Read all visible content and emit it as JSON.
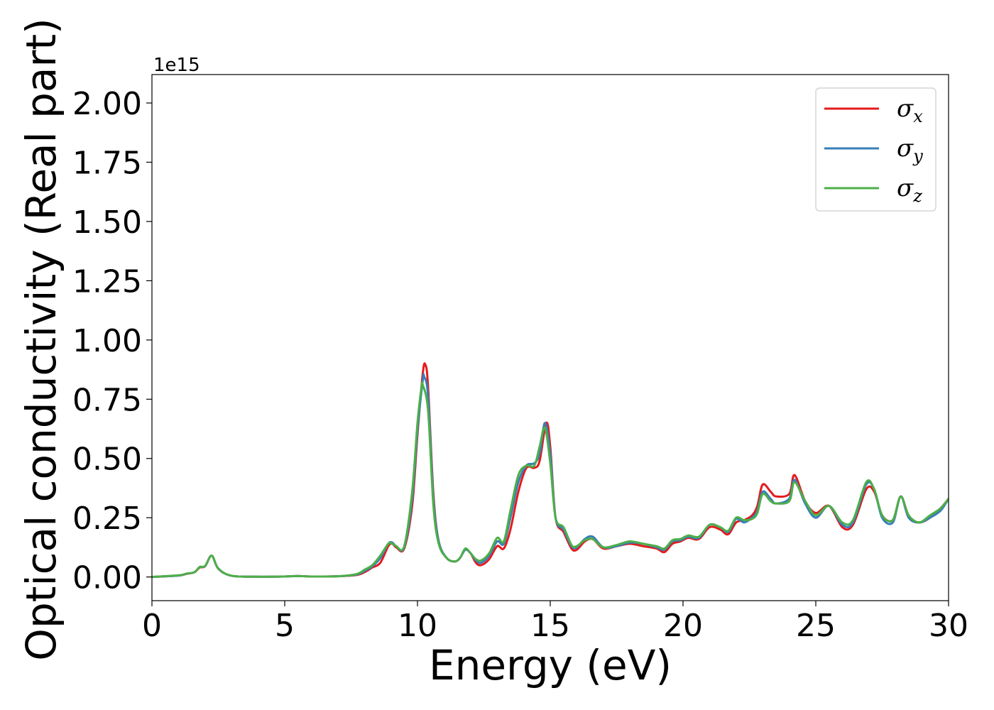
{
  "chart_data": {
    "type": "line",
    "xlabel": "Energy (eV)",
    "ylabel": "Optical conductivity (Real part)",
    "y_offset_label": "1e15",
    "xlim": [
      0,
      30
    ],
    "ylim": [
      -0.1,
      2.12
    ],
    "xticks": [
      0,
      5,
      10,
      15,
      20,
      25,
      30
    ],
    "xtick_labels": [
      "0",
      "5",
      "10",
      "15",
      "20",
      "25",
      "30"
    ],
    "yticks": [
      0,
      0.25,
      0.5,
      0.75,
      1.0,
      1.25,
      1.5,
      1.75,
      2.0
    ],
    "ytick_labels": [
      "0.00",
      "0.25",
      "0.50",
      "0.75",
      "1.00",
      "1.25",
      "1.50",
      "1.75",
      "2.00"
    ],
    "grid": false,
    "legend_position": "top-right",
    "series": [
      {
        "name_main": "σ",
        "name_sub": "x",
        "color": "#e41a1c",
        "points": [
          [
            0,
            0
          ],
          [
            1,
            0.006
          ],
          [
            1.3,
            0.013
          ],
          [
            1.6,
            0.02
          ],
          [
            1.8,
            0.04
          ],
          [
            2.0,
            0.045
          ],
          [
            2.25,
            0.09
          ],
          [
            2.5,
            0.035
          ],
          [
            3,
            0.005
          ],
          [
            4,
            0.001
          ],
          [
            5,
            0.002
          ],
          [
            5.5,
            0.004
          ],
          [
            6,
            0.002
          ],
          [
            7,
            0.003
          ],
          [
            7.7,
            0.008
          ],
          [
            8.0,
            0.02
          ],
          [
            8.3,
            0.04
          ],
          [
            8.6,
            0.06
          ],
          [
            8.9,
            0.13
          ],
          [
            9.05,
            0.14
          ],
          [
            9.2,
            0.125
          ],
          [
            9.5,
            0.12
          ],
          [
            9.8,
            0.3
          ],
          [
            10.0,
            0.6
          ],
          [
            10.2,
            0.86
          ],
          [
            10.3,
            0.895
          ],
          [
            10.4,
            0.8
          ],
          [
            10.6,
            0.35
          ],
          [
            10.8,
            0.15
          ],
          [
            11.1,
            0.08
          ],
          [
            11.4,
            0.065
          ],
          [
            11.6,
            0.08
          ],
          [
            11.8,
            0.115
          ],
          [
            12.0,
            0.1
          ],
          [
            12.2,
            0.06
          ],
          [
            12.4,
            0.05
          ],
          [
            12.7,
            0.075
          ],
          [
            13.0,
            0.13
          ],
          [
            13.25,
            0.12
          ],
          [
            13.5,
            0.2
          ],
          [
            13.8,
            0.36
          ],
          [
            14.1,
            0.46
          ],
          [
            14.4,
            0.46
          ],
          [
            14.6,
            0.49
          ],
          [
            14.85,
            0.65
          ],
          [
            15.0,
            0.55
          ],
          [
            15.2,
            0.25
          ],
          [
            15.5,
            0.19
          ],
          [
            15.8,
            0.12
          ],
          [
            16.0,
            0.115
          ],
          [
            16.3,
            0.15
          ],
          [
            16.6,
            0.16
          ],
          [
            17.0,
            0.12
          ],
          [
            17.5,
            0.13
          ],
          [
            18.0,
            0.14
          ],
          [
            18.5,
            0.13
          ],
          [
            19.0,
            0.12
          ],
          [
            19.3,
            0.105
          ],
          [
            19.6,
            0.14
          ],
          [
            19.9,
            0.15
          ],
          [
            20.2,
            0.165
          ],
          [
            20.6,
            0.16
          ],
          [
            21.0,
            0.21
          ],
          [
            21.4,
            0.2
          ],
          [
            21.7,
            0.18
          ],
          [
            22.0,
            0.23
          ],
          [
            22.3,
            0.24
          ],
          [
            22.6,
            0.26
          ],
          [
            22.8,
            0.3
          ],
          [
            23.0,
            0.39
          ],
          [
            23.3,
            0.36
          ],
          [
            23.5,
            0.34
          ],
          [
            24.0,
            0.35
          ],
          [
            24.2,
            0.43
          ],
          [
            24.6,
            0.32
          ],
          [
            25.0,
            0.27
          ],
          [
            25.5,
            0.3
          ],
          [
            26.0,
            0.21
          ],
          [
            26.4,
            0.22
          ],
          [
            26.9,
            0.37
          ],
          [
            27.2,
            0.36
          ],
          [
            27.5,
            0.26
          ],
          [
            27.9,
            0.24
          ],
          [
            28.2,
            0.34
          ],
          [
            28.5,
            0.25
          ],
          [
            28.9,
            0.23
          ],
          [
            29.3,
            0.25
          ],
          [
            29.7,
            0.29
          ],
          [
            30,
            0.33
          ]
        ]
      },
      {
        "name_main": "σ",
        "name_sub": "y",
        "color": "#377eb8",
        "points": [
          [
            0,
            0
          ],
          [
            1,
            0.006
          ],
          [
            1.3,
            0.014
          ],
          [
            1.6,
            0.02
          ],
          [
            1.8,
            0.042
          ],
          [
            2.0,
            0.045
          ],
          [
            2.25,
            0.09
          ],
          [
            2.5,
            0.035
          ],
          [
            3,
            0.005
          ],
          [
            4,
            0.001
          ],
          [
            5,
            0.002
          ],
          [
            5.5,
            0.004
          ],
          [
            6,
            0.002
          ],
          [
            7,
            0.003
          ],
          [
            7.7,
            0.01
          ],
          [
            8.0,
            0.025
          ],
          [
            8.3,
            0.045
          ],
          [
            8.6,
            0.08
          ],
          [
            8.9,
            0.14
          ],
          [
            9.05,
            0.145
          ],
          [
            9.2,
            0.13
          ],
          [
            9.5,
            0.125
          ],
          [
            9.8,
            0.33
          ],
          [
            10.0,
            0.62
          ],
          [
            10.2,
            0.83
          ],
          [
            10.25,
            0.845
          ],
          [
            10.4,
            0.76
          ],
          [
            10.6,
            0.33
          ],
          [
            10.8,
            0.15
          ],
          [
            11.1,
            0.08
          ],
          [
            11.4,
            0.065
          ],
          [
            11.6,
            0.08
          ],
          [
            11.8,
            0.115
          ],
          [
            12.0,
            0.1
          ],
          [
            12.2,
            0.07
          ],
          [
            12.4,
            0.06
          ],
          [
            12.7,
            0.09
          ],
          [
            13.0,
            0.15
          ],
          [
            13.25,
            0.14
          ],
          [
            13.5,
            0.25
          ],
          [
            13.8,
            0.4
          ],
          [
            14.1,
            0.47
          ],
          [
            14.4,
            0.48
          ],
          [
            14.6,
            0.52
          ],
          [
            14.8,
            0.65
          ],
          [
            15.0,
            0.52
          ],
          [
            15.2,
            0.25
          ],
          [
            15.5,
            0.2
          ],
          [
            15.8,
            0.13
          ],
          [
            16.0,
            0.125
          ],
          [
            16.3,
            0.16
          ],
          [
            16.6,
            0.17
          ],
          [
            17.0,
            0.125
          ],
          [
            17.5,
            0.13
          ],
          [
            18.0,
            0.145
          ],
          [
            18.5,
            0.14
          ],
          [
            19.0,
            0.125
          ],
          [
            19.3,
            0.115
          ],
          [
            19.6,
            0.15
          ],
          [
            19.9,
            0.155
          ],
          [
            20.2,
            0.17
          ],
          [
            20.6,
            0.165
          ],
          [
            21.0,
            0.22
          ],
          [
            21.4,
            0.21
          ],
          [
            21.7,
            0.19
          ],
          [
            22.0,
            0.245
          ],
          [
            22.3,
            0.23
          ],
          [
            22.6,
            0.25
          ],
          [
            22.8,
            0.28
          ],
          [
            23.0,
            0.36
          ],
          [
            23.3,
            0.33
          ],
          [
            23.5,
            0.31
          ],
          [
            24.0,
            0.33
          ],
          [
            24.2,
            0.41
          ],
          [
            24.6,
            0.31
          ],
          [
            25.0,
            0.25
          ],
          [
            25.5,
            0.3
          ],
          [
            26.0,
            0.22
          ],
          [
            26.4,
            0.23
          ],
          [
            26.9,
            0.39
          ],
          [
            27.2,
            0.37
          ],
          [
            27.5,
            0.25
          ],
          [
            27.9,
            0.23
          ],
          [
            28.2,
            0.34
          ],
          [
            28.5,
            0.25
          ],
          [
            28.9,
            0.23
          ],
          [
            29.3,
            0.25
          ],
          [
            29.7,
            0.28
          ],
          [
            30,
            0.33
          ]
        ]
      },
      {
        "name_main": "σ",
        "name_sub": "z",
        "color": "#4daf4a",
        "points": [
          [
            0,
            0
          ],
          [
            1,
            0.007
          ],
          [
            1.3,
            0.014
          ],
          [
            1.6,
            0.02
          ],
          [
            1.8,
            0.042
          ],
          [
            2.0,
            0.046
          ],
          [
            2.25,
            0.09
          ],
          [
            2.5,
            0.036
          ],
          [
            3,
            0.005
          ],
          [
            4,
            0.001
          ],
          [
            5,
            0.002
          ],
          [
            5.5,
            0.004
          ],
          [
            6,
            0.002
          ],
          [
            7,
            0.003
          ],
          [
            7.7,
            0.012
          ],
          [
            8.0,
            0.03
          ],
          [
            8.3,
            0.05
          ],
          [
            8.6,
            0.09
          ],
          [
            8.9,
            0.14
          ],
          [
            9.05,
            0.14
          ],
          [
            9.2,
            0.13
          ],
          [
            9.5,
            0.13
          ],
          [
            9.8,
            0.36
          ],
          [
            10.0,
            0.65
          ],
          [
            10.15,
            0.8
          ],
          [
            10.2,
            0.81
          ],
          [
            10.4,
            0.7
          ],
          [
            10.6,
            0.3
          ],
          [
            10.8,
            0.14
          ],
          [
            11.1,
            0.08
          ],
          [
            11.4,
            0.065
          ],
          [
            11.6,
            0.08
          ],
          [
            11.8,
            0.12
          ],
          [
            12.0,
            0.1
          ],
          [
            12.2,
            0.075
          ],
          [
            12.4,
            0.07
          ],
          [
            12.7,
            0.1
          ],
          [
            13.0,
            0.165
          ],
          [
            13.25,
            0.15
          ],
          [
            13.5,
            0.28
          ],
          [
            13.8,
            0.43
          ],
          [
            14.1,
            0.47
          ],
          [
            14.4,
            0.47
          ],
          [
            14.6,
            0.55
          ],
          [
            14.8,
            0.63
          ],
          [
            15.0,
            0.48
          ],
          [
            15.2,
            0.25
          ],
          [
            15.5,
            0.21
          ],
          [
            15.8,
            0.135
          ],
          [
            16.0,
            0.13
          ],
          [
            16.3,
            0.155
          ],
          [
            16.6,
            0.16
          ],
          [
            17.0,
            0.125
          ],
          [
            17.5,
            0.135
          ],
          [
            18.0,
            0.15
          ],
          [
            18.5,
            0.14
          ],
          [
            19.0,
            0.13
          ],
          [
            19.3,
            0.12
          ],
          [
            19.6,
            0.155
          ],
          [
            19.9,
            0.16
          ],
          [
            20.2,
            0.175
          ],
          [
            20.6,
            0.17
          ],
          [
            21.0,
            0.22
          ],
          [
            21.4,
            0.21
          ],
          [
            21.7,
            0.195
          ],
          [
            22.0,
            0.25
          ],
          [
            22.3,
            0.24
          ],
          [
            22.6,
            0.245
          ],
          [
            22.8,
            0.27
          ],
          [
            23.0,
            0.35
          ],
          [
            23.3,
            0.32
          ],
          [
            23.5,
            0.31
          ],
          [
            24.0,
            0.32
          ],
          [
            24.2,
            0.4
          ],
          [
            24.6,
            0.32
          ],
          [
            25.0,
            0.26
          ],
          [
            25.5,
            0.3
          ],
          [
            26.0,
            0.23
          ],
          [
            26.4,
            0.24
          ],
          [
            26.9,
            0.4
          ],
          [
            27.2,
            0.37
          ],
          [
            27.5,
            0.26
          ],
          [
            27.9,
            0.24
          ],
          [
            28.2,
            0.34
          ],
          [
            28.5,
            0.26
          ],
          [
            28.9,
            0.23
          ],
          [
            29.3,
            0.26
          ],
          [
            29.7,
            0.29
          ],
          [
            30,
            0.33
          ]
        ]
      }
    ]
  }
}
